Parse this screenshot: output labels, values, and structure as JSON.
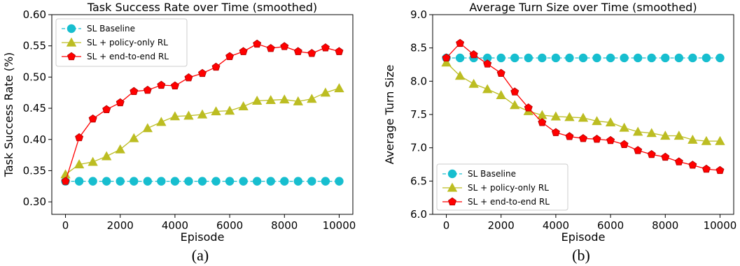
{
  "chart_data": [
    {
      "type": "line",
      "title": "Task Success Rate over Time (smoothed)",
      "xlabel": "Episode",
      "ylabel": "Task Success Rate (%)",
      "caption": "(a)",
      "xlim": [
        -500,
        10500
      ],
      "ylim": [
        0.28,
        0.6
      ],
      "xticks": [
        0,
        2000,
        4000,
        6000,
        8000,
        10000
      ],
      "yticks": [
        0.3,
        0.35,
        0.4,
        0.45,
        0.5,
        0.55,
        0.6
      ],
      "ytick_labels": [
        "0.30",
        "0.35",
        "0.40",
        "0.45",
        "0.50",
        "0.55",
        "0.60"
      ],
      "legend_position": "top-left",
      "x": [
        0,
        500,
        1000,
        1500,
        2000,
        2500,
        3000,
        3500,
        4000,
        4500,
        5000,
        5500,
        6000,
        6500,
        7000,
        7500,
        8000,
        8500,
        9000,
        9500,
        10000
      ],
      "series": [
        {
          "name": "SL Baseline",
          "color": "#17becf",
          "marker": "circle",
          "dashed": true,
          "values": [
            0.333,
            0.333,
            0.333,
            0.333,
            0.333,
            0.333,
            0.333,
            0.333,
            0.333,
            0.333,
            0.333,
            0.333,
            0.333,
            0.333,
            0.333,
            0.333,
            0.333,
            0.333,
            0.333,
            0.333,
            0.333
          ]
        },
        {
          "name": "SL + policy-only RL",
          "color": "#bcbd22",
          "marker": "triangle",
          "dashed": false,
          "values": [
            0.344,
            0.36,
            0.364,
            0.373,
            0.384,
            0.402,
            0.418,
            0.428,
            0.437,
            0.438,
            0.44,
            0.445,
            0.446,
            0.453,
            0.462,
            0.463,
            0.464,
            0.461,
            0.465,
            0.475,
            0.482
          ]
        },
        {
          "name": "SL + end-to-end RL",
          "color": "#ff0000",
          "marker": "pentagon",
          "dashed": false,
          "values": [
            0.333,
            0.403,
            0.433,
            0.448,
            0.459,
            0.477,
            0.479,
            0.487,
            0.486,
            0.499,
            0.506,
            0.516,
            0.533,
            0.541,
            0.553,
            0.546,
            0.549,
            0.541,
            0.538,
            0.547,
            0.541
          ]
        }
      ]
    },
    {
      "type": "line",
      "title": "Average Turn Size over Time (smoothed)",
      "xlabel": "Episode",
      "ylabel": "Average Turn Size",
      "caption": "(b)",
      "xlim": [
        -500,
        10500
      ],
      "ylim": [
        6.0,
        9.0
      ],
      "xticks": [
        0,
        2000,
        4000,
        6000,
        8000,
        10000
      ],
      "yticks": [
        6.0,
        6.5,
        7.0,
        7.5,
        8.0,
        8.5,
        9.0
      ],
      "ytick_labels": [
        "6.0",
        "6.5",
        "7.0",
        "7.5",
        "8.0",
        "8.5",
        "9.0"
      ],
      "legend_position": "bottom-left",
      "x": [
        0,
        500,
        1000,
        1500,
        2000,
        2500,
        3000,
        3500,
        4000,
        4500,
        5000,
        5500,
        6000,
        6500,
        7000,
        7500,
        8000,
        8500,
        9000,
        9500,
        10000
      ],
      "series": [
        {
          "name": "SL Baseline",
          "color": "#17becf",
          "marker": "circle",
          "dashed": true,
          "values": [
            8.35,
            8.35,
            8.35,
            8.35,
            8.35,
            8.35,
            8.35,
            8.35,
            8.35,
            8.35,
            8.35,
            8.35,
            8.35,
            8.35,
            8.35,
            8.35,
            8.35,
            8.35,
            8.35,
            8.35,
            8.35
          ]
        },
        {
          "name": "SL + policy-only RL",
          "color": "#bcbd22",
          "marker": "triangle",
          "dashed": false,
          "values": [
            8.28,
            8.08,
            7.96,
            7.88,
            7.79,
            7.64,
            7.55,
            7.49,
            7.47,
            7.46,
            7.45,
            7.4,
            7.38,
            7.3,
            7.24,
            7.22,
            7.18,
            7.18,
            7.12,
            7.1,
            7.1
          ]
        },
        {
          "name": "SL + end-to-end RL",
          "color": "#ff0000",
          "marker": "pentagon",
          "dashed": false,
          "values": [
            8.35,
            8.57,
            8.4,
            8.26,
            8.12,
            7.84,
            7.6,
            7.38,
            7.23,
            7.17,
            7.14,
            7.13,
            7.11,
            7.05,
            6.96,
            6.9,
            6.86,
            6.79,
            6.74,
            6.68,
            6.66
          ]
        }
      ]
    }
  ]
}
